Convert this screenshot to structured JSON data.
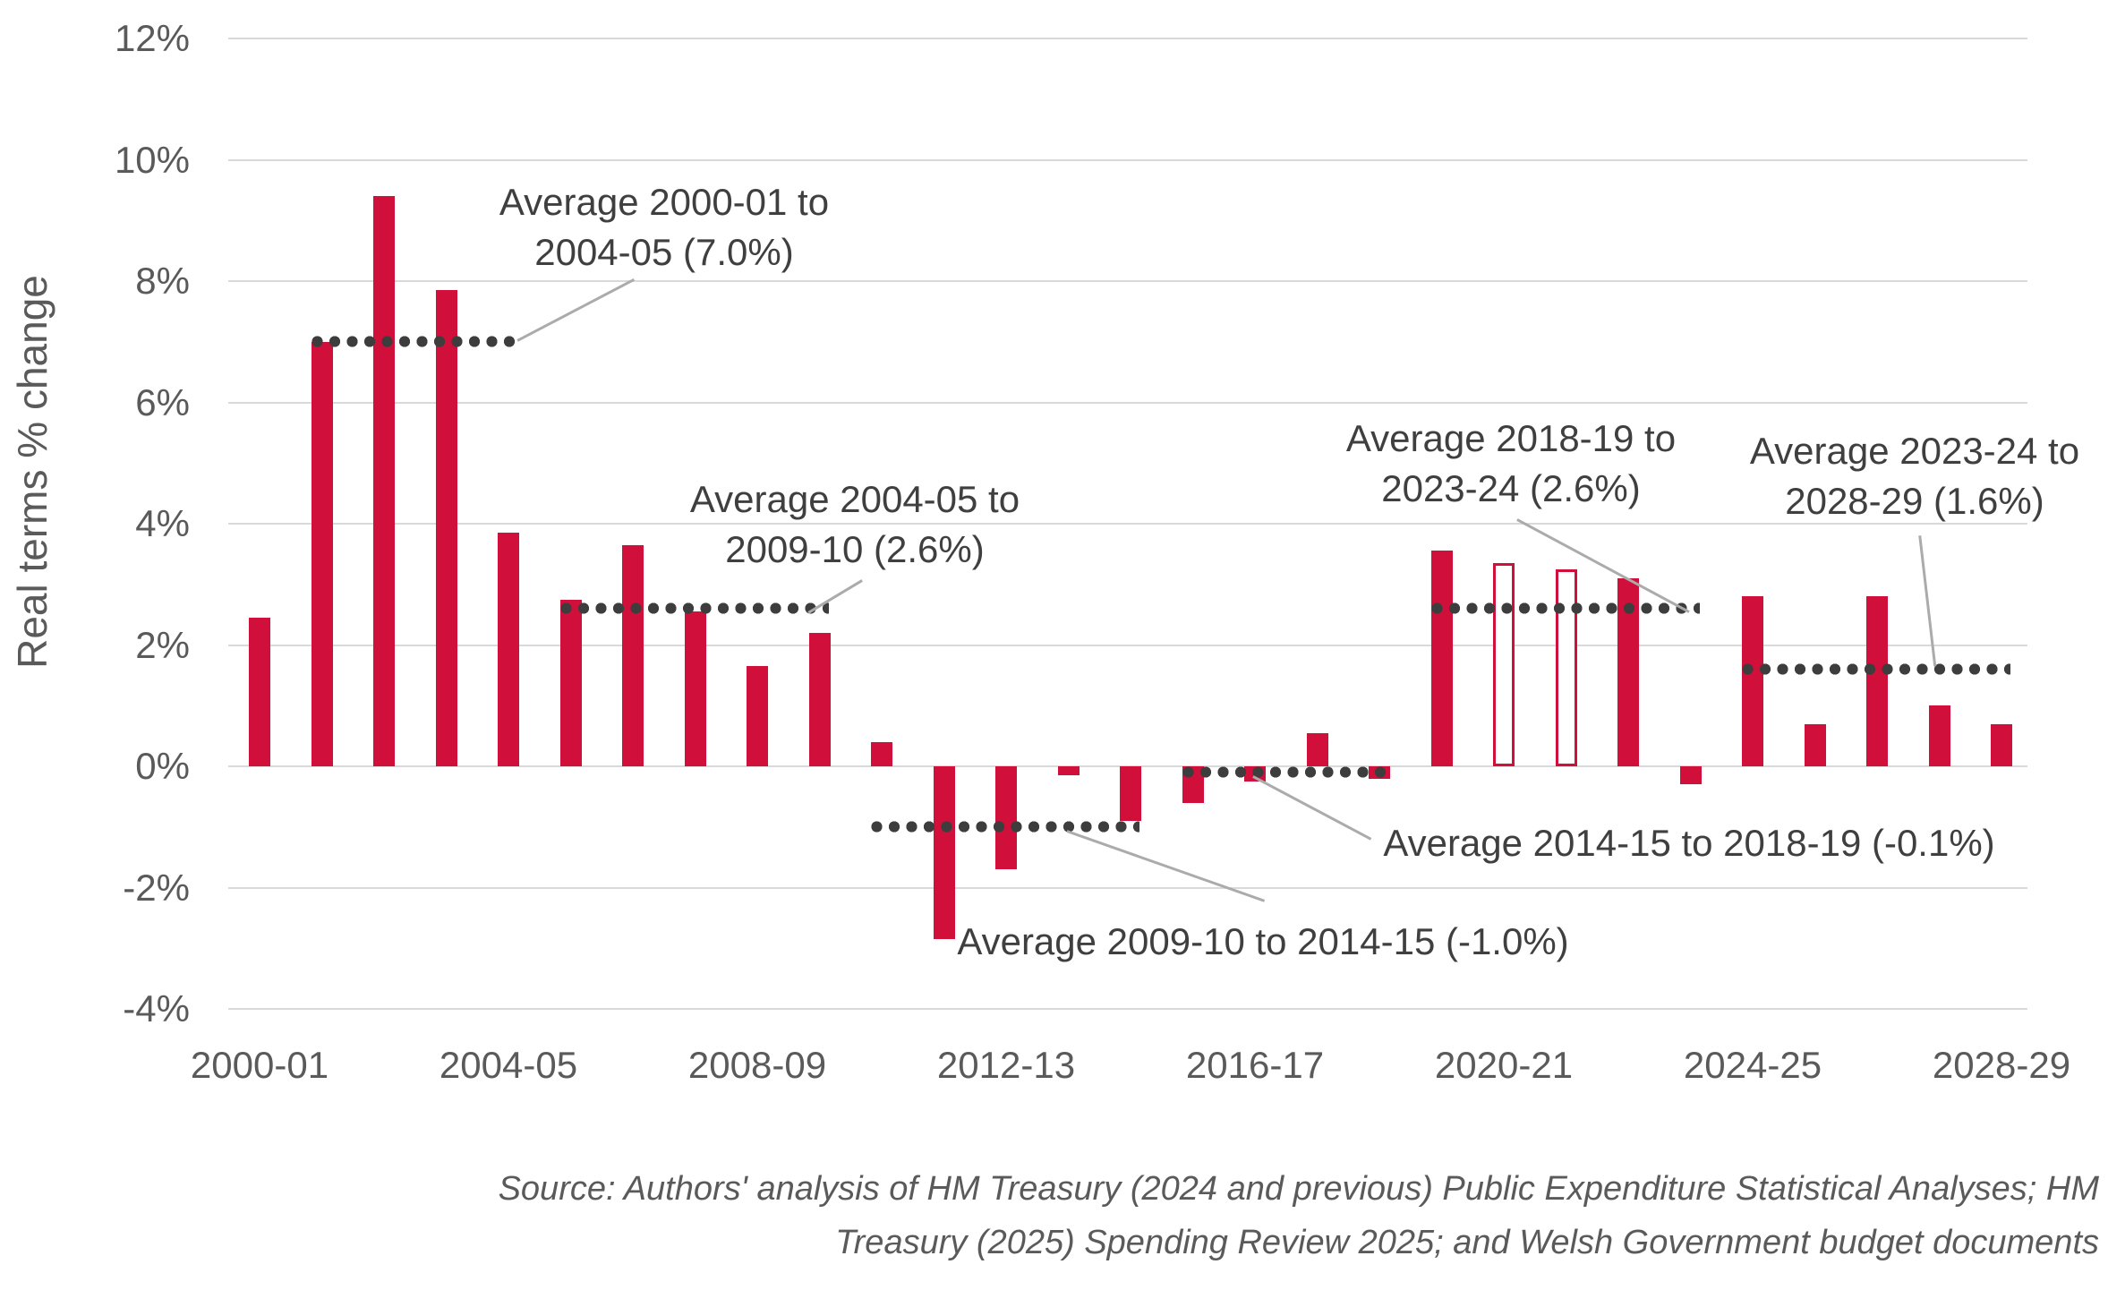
{
  "chart_data": {
    "type": "bar",
    "title": "",
    "ylabel": "Real terms % change",
    "ylim": [
      -4,
      12
    ],
    "grid": true,
    "yticks": [
      {
        "value": 12,
        "label": "12%"
      },
      {
        "value": 10,
        "label": "10%"
      },
      {
        "value": 8,
        "label": "8%"
      },
      {
        "value": 6,
        "label": "6%"
      },
      {
        "value": 4,
        "label": "4%"
      },
      {
        "value": 2,
        "label": "2%"
      },
      {
        "value": 0,
        "label": "0%"
      },
      {
        "value": -2,
        "label": "-2%"
      },
      {
        "value": -4,
        "label": "-4%"
      }
    ],
    "categories": [
      "2000-01",
      "2001-02",
      "2002-03",
      "2003-04",
      "2004-05",
      "2005-06",
      "2006-07",
      "2007-08",
      "2008-09",
      "2009-10",
      "2010-11",
      "2011-12",
      "2012-13",
      "2013-14",
      "2014-15",
      "2015-16",
      "2016-17",
      "2017-18",
      "2018-19",
      "2019-20",
      "2020-21",
      "2021-22",
      "2022-23",
      "2023-24",
      "2024-25",
      "2025-26",
      "2026-27",
      "2027-28",
      "2028-29"
    ],
    "values": [
      2.45,
      7.0,
      9.4,
      7.85,
      3.85,
      2.75,
      3.65,
      2.55,
      1.65,
      2.2,
      0.4,
      -2.85,
      -1.7,
      -0.15,
      -0.9,
      -0.6,
      -0.25,
      0.55,
      -0.2,
      3.55,
      3.35,
      3.25,
      3.1,
      -0.3,
      2.8,
      0.7,
      2.8,
      1.0,
      0.7
    ],
    "hollow_categories": [
      "2020-21",
      "2021-22"
    ],
    "x_tick_labels": [
      "2000-01",
      "2004-05",
      "2008-09",
      "2012-13",
      "2016-17",
      "2020-21",
      "2024-25",
      "2028-29"
    ],
    "average_lines": [
      {
        "text_lines": [
          "Average 2000-01 to",
          "2004-05 (7.0%)"
        ],
        "value": 7.0,
        "from": "2001-02",
        "to": "2004-05"
      },
      {
        "text_lines": [
          "Average 2004-05 to",
          "2009-10 (2.6%)"
        ],
        "value": 2.6,
        "from": "2005-06",
        "to": "2009-10"
      },
      {
        "text_lines": [
          "Average 2009-10 to 2014-15 (-1.0%)"
        ],
        "value": -1.0,
        "from": "2010-11",
        "to": "2014-15"
      },
      {
        "text_lines": [
          "Average 2014-15 to 2018-19 (-0.1%)"
        ],
        "value": -0.1,
        "from": "2015-16",
        "to": "2018-19"
      },
      {
        "text_lines": [
          "Average 2018-19 to",
          "2023-24 (2.6%)"
        ],
        "value": 2.6,
        "from": "2019-20",
        "to": "2023-24"
      },
      {
        "text_lines": [
          "Average 2023-24 to",
          "2028-29 (1.6%)"
        ],
        "value": 1.6,
        "from": "2024-25",
        "to": "2028-29"
      }
    ]
  },
  "source": {
    "line1": "Source: Authors' analysis of HM Treasury (2024 and previous) Public Expenditure Statistical Analyses; HM",
    "line2": "Treasury (2025) Spending Review 2025; and Welsh Government budget documents"
  },
  "colors": {
    "bar": "#D00F3A",
    "grid": "#D9D9D9",
    "dots": "#3D3D3D",
    "axis_text": "#5A5A5A",
    "annotation_text": "#3F3F3F",
    "leader": "#ABABAB",
    "source_text": "#5A5A5A"
  }
}
